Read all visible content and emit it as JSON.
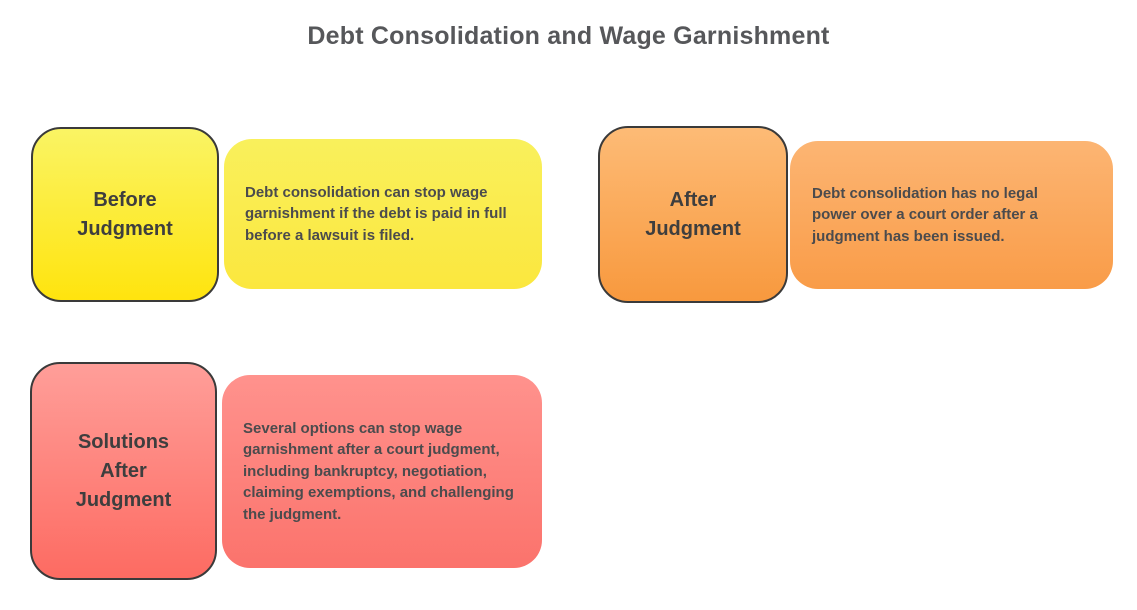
{
  "title": "Debt Consolidation and Wage Garnishment",
  "cards": [
    {
      "label": "Before\nJudgment",
      "description": "Debt consolidation can stop wage garnishment if the debt is paid in full before a lawsuit is filed.",
      "gradient_top": "#FAF464",
      "gradient_bottom": "#FFE40E"
    },
    {
      "label": "After\nJudgment",
      "description": "Debt consolidation has no legal power over a court order after a judgment has been issued.",
      "gradient_top": "#FDBB76",
      "gradient_bottom": "#F8993E"
    },
    {
      "label": "Solutions\nAfter\nJudgment",
      "description": "Several options can stop wage garnishment after a court judgment, including bankruptcy, negotiation, claiming exemptions, and challenging the judgment.",
      "gradient_top": "#FF9E99",
      "gradient_bottom": "#FD6B62"
    }
  ],
  "colors": {
    "background": "#FFFFFF",
    "square_border": "#3A3A3A",
    "title_text": "#56575A",
    "label_text": "#3E3E3E",
    "body_text": "#4B4B4D"
  }
}
